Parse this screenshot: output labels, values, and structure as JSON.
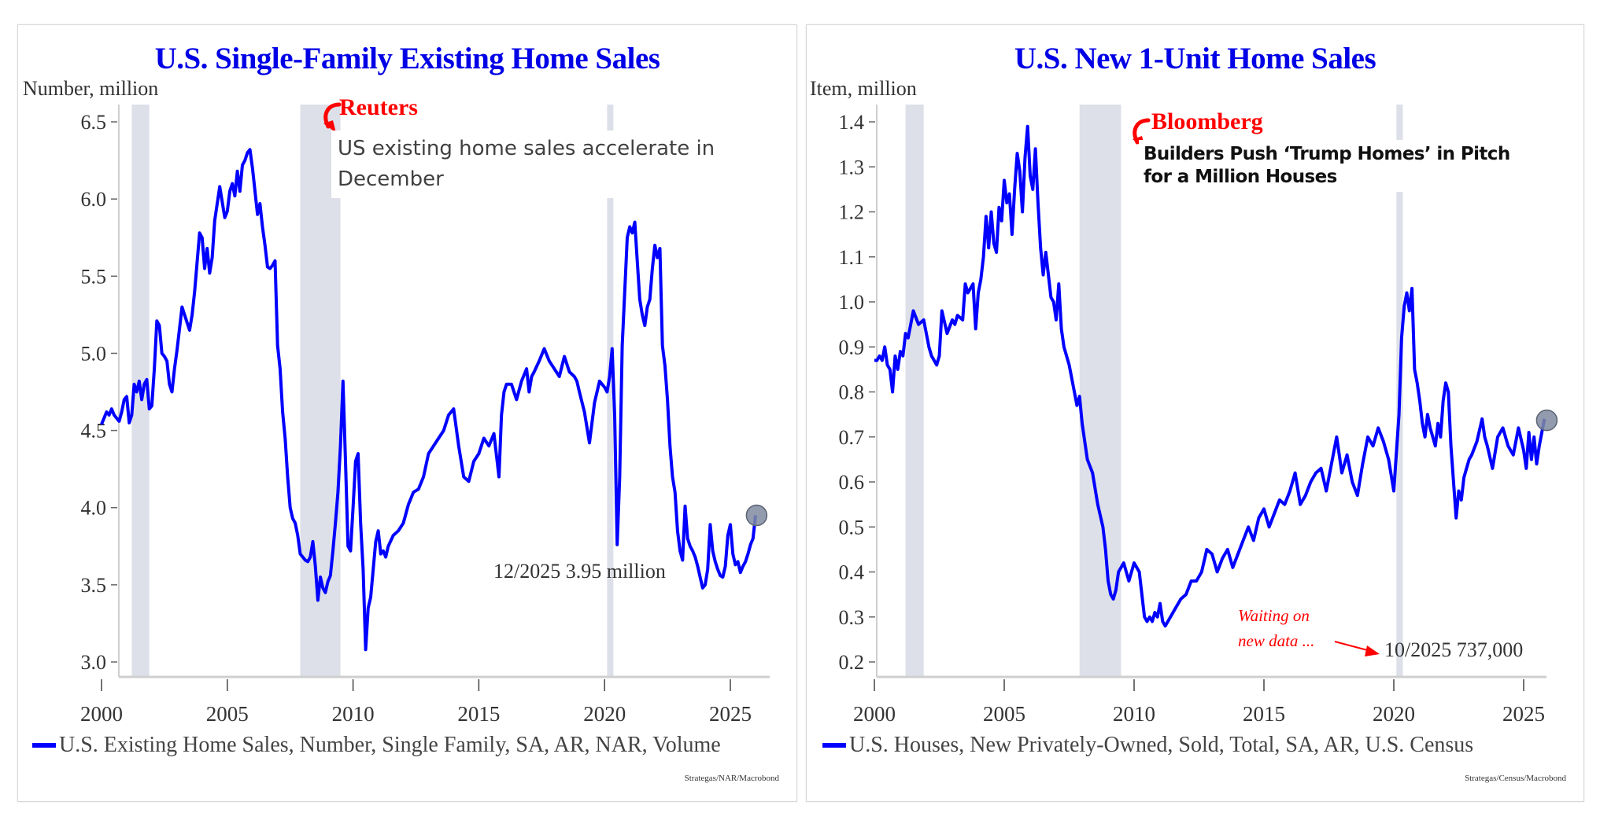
{
  "colors": {
    "title": "#0000e6",
    "series": "#0000ff",
    "recession": "#dde0e8",
    "annotation_red": "#ff0000",
    "endpoint_marker": "#7f8ba0"
  },
  "chart_data": [
    {
      "type": "line",
      "title": "U.S. Single-Family Existing Home Sales",
      "ylabel": "Number, million",
      "xlabel": "",
      "xlim": [
        2000,
        2026.3
      ],
      "ylim": [
        2.93,
        6.6
      ],
      "x_ticks": [
        2000,
        2005,
        2010,
        2015,
        2020,
        2025
      ],
      "x_tick_labels": [
        "2000",
        "2005",
        "2010",
        "2015",
        "2020",
        "2025"
      ],
      "y_ticks": [
        3.0,
        3.5,
        4.0,
        4.5,
        5.0,
        5.5,
        6.0,
        6.5
      ],
      "y_tick_labels": [
        "3.0",
        "3.5",
        "4.0",
        "4.5",
        "5.0",
        "5.5",
        "6.0",
        "6.5"
      ],
      "grid": false,
      "legend": "bottom",
      "recessions": [
        [
          2001.2,
          2001.9
        ],
        [
          2007.9,
          2009.5
        ],
        [
          2020.1,
          2020.35
        ]
      ],
      "series": [
        {
          "name": "U.S. Existing Home Sales, Number, Single Family, SA, AR, NAR, Volume",
          "x": [
            2000.0,
            2000.1,
            2000.2,
            2000.3,
            2000.4,
            2000.5,
            2000.6,
            2000.7,
            2000.8,
            2000.9,
            2001.0,
            2001.1,
            2001.2,
            2001.3,
            2001.4,
            2001.5,
            2001.6,
            2001.7,
            2001.8,
            2001.9,
            2002.0,
            2002.1,
            2002.2,
            2002.3,
            2002.4,
            2002.5,
            2002.6,
            2002.7,
            2002.8,
            2002.9,
            2003.0,
            2003.2,
            2003.4,
            2003.5,
            2003.6,
            2003.7,
            2003.9,
            2004.0,
            2004.1,
            2004.2,
            2004.3,
            2004.4,
            2004.5,
            2004.7,
            2004.9,
            2005.0,
            2005.1,
            2005.2,
            2005.3,
            2005.4,
            2005.5,
            2005.6,
            2005.7,
            2005.8,
            2005.9,
            2006.0,
            2006.1,
            2006.2,
            2006.3,
            2006.4,
            2006.5,
            2006.6,
            2006.7,
            2006.8,
            2006.9,
            2007.0,
            2007.1,
            2007.2,
            2007.3,
            2007.4,
            2007.5,
            2007.6,
            2007.7,
            2007.8,
            2007.9,
            2008.0,
            2008.1,
            2008.2,
            2008.3,
            2008.4,
            2008.5,
            2008.6,
            2008.7,
            2008.8,
            2008.9,
            2009.0,
            2009.1,
            2009.2,
            2009.3,
            2009.4,
            2009.5,
            2009.6,
            2009.7,
            2009.8,
            2009.9,
            2010.0,
            2010.1,
            2010.2,
            2010.3,
            2010.4,
            2010.5,
            2010.6,
            2010.7,
            2010.8,
            2010.9,
            2011.0,
            2011.1,
            2011.2,
            2011.3,
            2011.4,
            2011.6,
            2011.8,
            2012.0,
            2012.2,
            2012.4,
            2012.6,
            2012.8,
            2013.0,
            2013.2,
            2013.4,
            2013.6,
            2013.8,
            2014.0,
            2014.2,
            2014.4,
            2014.6,
            2014.8,
            2015.0,
            2015.2,
            2015.4,
            2015.6,
            2015.8,
            2015.9,
            2016.0,
            2016.1,
            2016.3,
            2016.5,
            2016.7,
            2016.9,
            2017.0,
            2017.1,
            2017.2,
            2017.4,
            2017.6,
            2017.8,
            2018.0,
            2018.2,
            2018.4,
            2018.6,
            2018.8,
            2018.9,
            2019.0,
            2019.2,
            2019.4,
            2019.6,
            2019.8,
            2020.0,
            2020.1,
            2020.2,
            2020.3,
            2020.4,
            2020.5,
            2020.6,
            2020.7,
            2020.8,
            2020.9,
            2021.0,
            2021.1,
            2021.2,
            2021.3,
            2021.4,
            2021.5,
            2021.6,
            2021.7,
            2021.8,
            2021.9,
            2022.0,
            2022.1,
            2022.2,
            2022.3,
            2022.4,
            2022.5,
            2022.6,
            2022.7,
            2022.8,
            2022.9,
            2023.0,
            2023.1,
            2023.2,
            2023.3,
            2023.4,
            2023.5,
            2023.6,
            2023.7,
            2023.8,
            2023.9,
            2024.0,
            2024.1,
            2024.2,
            2024.3,
            2024.4,
            2024.5,
            2024.6,
            2024.7,
            2024.8,
            2024.9,
            2025.0,
            2025.1,
            2025.2,
            2025.3,
            2025.4,
            2025.5,
            2025.6,
            2025.7,
            2025.8,
            2025.9,
            2026.0
          ],
          "y": [
            4.54,
            4.58,
            4.62,
            4.6,
            4.64,
            4.6,
            4.58,
            4.56,
            4.62,
            4.7,
            4.72,
            4.55,
            4.6,
            4.8,
            4.75,
            4.82,
            4.7,
            4.8,
            4.83,
            4.64,
            4.66,
            4.9,
            5.21,
            5.18,
            5.0,
            4.98,
            4.95,
            4.8,
            4.75,
            4.9,
            5.02,
            5.3,
            5.2,
            5.15,
            5.25,
            5.4,
            5.78,
            5.75,
            5.55,
            5.68,
            5.52,
            5.62,
            5.86,
            6.08,
            5.88,
            5.92,
            6.05,
            6.1,
            6.02,
            6.18,
            6.05,
            6.22,
            6.25,
            6.3,
            6.32,
            6.2,
            6.05,
            5.9,
            5.97,
            5.82,
            5.7,
            5.56,
            5.55,
            5.57,
            5.6,
            5.05,
            4.9,
            4.62,
            4.45,
            4.2,
            4.0,
            3.93,
            3.9,
            3.82,
            3.7,
            3.68,
            3.66,
            3.65,
            3.68,
            3.78,
            3.62,
            3.4,
            3.55,
            3.48,
            3.45,
            3.52,
            3.56,
            3.72,
            3.9,
            4.1,
            4.4,
            4.82,
            4.3,
            3.75,
            3.72,
            4.0,
            4.3,
            4.35,
            3.9,
            3.6,
            3.08,
            3.35,
            3.42,
            3.6,
            3.78,
            3.85,
            3.7,
            3.72,
            3.68,
            3.75,
            3.82,
            3.85,
            3.9,
            4.02,
            4.1,
            4.12,
            4.2,
            4.35,
            4.4,
            4.45,
            4.5,
            4.6,
            4.64,
            4.4,
            4.2,
            4.17,
            4.3,
            4.35,
            4.45,
            4.4,
            4.48,
            4.2,
            4.6,
            4.75,
            4.8,
            4.8,
            4.7,
            4.82,
            4.9,
            4.75,
            4.85,
            4.88,
            4.95,
            5.03,
            4.95,
            4.9,
            4.85,
            4.98,
            4.88,
            4.85,
            4.82,
            4.75,
            4.62,
            4.42,
            4.68,
            4.82,
            4.78,
            4.75,
            4.85,
            5.03,
            4.6,
            3.76,
            4.2,
            5.05,
            5.4,
            5.75,
            5.82,
            5.78,
            5.85,
            5.6,
            5.35,
            5.25,
            5.18,
            5.3,
            5.35,
            5.55,
            5.7,
            5.62,
            5.68,
            5.05,
            4.92,
            4.7,
            4.4,
            4.2,
            4.1,
            3.85,
            3.72,
            3.66,
            4.01,
            3.8,
            3.75,
            3.72,
            3.68,
            3.62,
            3.55,
            3.48,
            3.5,
            3.6,
            3.89,
            3.72,
            3.65,
            3.6,
            3.56,
            3.55,
            3.62,
            3.82,
            3.89,
            3.7,
            3.63,
            3.65,
            3.58,
            3.62,
            3.65,
            3.7,
            3.76,
            3.8,
            3.95
          ]
        }
      ],
      "annotations": {
        "news_source": "Reuters",
        "headline_line1": "US existing home sales accelerate in",
        "headline_line2": "December",
        "endpoint_label": "12/2025 3.95 million",
        "endpoint": [
          2025.95,
          3.95
        ]
      },
      "source": "Strategas/NAR/Macrobond"
    },
    {
      "type": "line",
      "title": "U.S. New 1-Unit Home Sales",
      "ylabel": "Item, million",
      "xlabel": "",
      "xlim": [
        2000,
        2026.3
      ],
      "ylim": [
        0.17,
        1.435
      ],
      "x_ticks": [
        2000,
        2005,
        2010,
        2015,
        2020,
        2025
      ],
      "x_tick_labels": [
        "2000",
        "2005",
        "2010",
        "2015",
        "2020",
        "2025"
      ],
      "y_ticks": [
        0.2,
        0.3,
        0.4,
        0.5,
        0.6,
        0.7,
        0.8,
        0.9,
        1.0,
        1.1,
        1.2,
        1.3,
        1.4
      ],
      "y_tick_labels": [
        "0.2",
        "0.3",
        "0.4",
        "0.5",
        "0.6",
        "0.7",
        "0.8",
        "0.9",
        "1.0",
        "1.1",
        "1.2",
        "1.3",
        "1.4"
      ],
      "grid": false,
      "legend": "bottom",
      "recessions": [
        [
          2001.2,
          2001.9
        ],
        [
          2007.9,
          2009.5
        ],
        [
          2020.1,
          2020.35
        ]
      ],
      "series": [
        {
          "name": "U.S. Houses, New Privately-Owned, Sold, Total, SA, AR, U.S. Census",
          "x": [
            2000.0,
            2000.1,
            2000.2,
            2000.3,
            2000.4,
            2000.5,
            2000.6,
            2000.7,
            2000.8,
            2000.9,
            2001.0,
            2001.1,
            2001.2,
            2001.3,
            2001.5,
            2001.7,
            2001.9,
            2002.0,
            2002.1,
            2002.2,
            2002.3,
            2002.4,
            2002.5,
            2002.6,
            2002.8,
            2003.0,
            2003.1,
            2003.2,
            2003.4,
            2003.5,
            2003.6,
            2003.8,
            2003.9,
            2004.0,
            2004.1,
            2004.2,
            2004.3,
            2004.4,
            2004.5,
            2004.6,
            2004.7,
            2004.8,
            2004.9,
            2005.0,
            2005.1,
            2005.2,
            2005.3,
            2005.4,
            2005.5,
            2005.6,
            2005.7,
            2005.8,
            2005.9,
            2006.0,
            2006.1,
            2006.2,
            2006.3,
            2006.4,
            2006.5,
            2006.6,
            2006.7,
            2006.8,
            2006.9,
            2007.0,
            2007.1,
            2007.2,
            2007.3,
            2007.5,
            2007.6,
            2007.8,
            2007.9,
            2008.0,
            2008.2,
            2008.4,
            2008.6,
            2008.8,
            2008.9,
            2009.0,
            2009.1,
            2009.2,
            2009.3,
            2009.4,
            2009.6,
            2009.8,
            2010.0,
            2010.2,
            2010.4,
            2010.5,
            2010.6,
            2010.7,
            2010.8,
            2010.9,
            2011.0,
            2011.1,
            2011.2,
            2011.4,
            2011.6,
            2011.8,
            2012.0,
            2012.2,
            2012.4,
            2012.6,
            2012.8,
            2013.0,
            2013.2,
            2013.4,
            2013.6,
            2013.8,
            2014.0,
            2014.2,
            2014.4,
            2014.6,
            2014.8,
            2015.0,
            2015.2,
            2015.4,
            2015.6,
            2015.8,
            2016.0,
            2016.2,
            2016.4,
            2016.6,
            2016.8,
            2017.0,
            2017.2,
            2017.4,
            2017.6,
            2017.8,
            2018.0,
            2018.2,
            2018.4,
            2018.6,
            2018.8,
            2019.0,
            2019.2,
            2019.4,
            2019.6,
            2019.8,
            2020.0,
            2020.2,
            2020.3,
            2020.4,
            2020.5,
            2020.6,
            2020.7,
            2020.8,
            2020.9,
            2021.0,
            2021.1,
            2021.2,
            2021.3,
            2021.4,
            2021.5,
            2021.6,
            2021.7,
            2021.8,
            2021.9,
            2022.0,
            2022.1,
            2022.2,
            2022.3,
            2022.4,
            2022.5,
            2022.6,
            2022.7,
            2022.8,
            2022.9,
            2023.0,
            2023.2,
            2023.4,
            2023.5,
            2023.6,
            2023.8,
            2024.0,
            2024.2,
            2024.4,
            2024.6,
            2024.8,
            2025.0,
            2025.1,
            2025.2,
            2025.3,
            2025.4,
            2025.5,
            2025.6,
            2025.8
          ],
          "y": [
            0.87,
            0.87,
            0.88,
            0.87,
            0.9,
            0.86,
            0.85,
            0.8,
            0.88,
            0.85,
            0.89,
            0.88,
            0.93,
            0.92,
            0.98,
            0.95,
            0.96,
            0.93,
            0.9,
            0.88,
            0.87,
            0.86,
            0.88,
            0.98,
            0.93,
            0.96,
            0.95,
            0.97,
            0.96,
            1.04,
            1.02,
            1.04,
            0.94,
            1.02,
            1.05,
            1.1,
            1.19,
            1.12,
            1.2,
            1.13,
            1.11,
            1.21,
            1.18,
            1.27,
            1.22,
            1.24,
            1.15,
            1.25,
            1.33,
            1.29,
            1.2,
            1.32,
            1.39,
            1.28,
            1.25,
            1.34,
            1.22,
            1.12,
            1.06,
            1.11,
            1.06,
            1.01,
            1.0,
            0.96,
            1.04,
            0.94,
            0.9,
            0.86,
            0.83,
            0.77,
            0.79,
            0.73,
            0.65,
            0.62,
            0.55,
            0.5,
            0.45,
            0.38,
            0.35,
            0.34,
            0.36,
            0.4,
            0.42,
            0.38,
            0.42,
            0.4,
            0.3,
            0.29,
            0.3,
            0.29,
            0.31,
            0.3,
            0.33,
            0.29,
            0.28,
            0.3,
            0.32,
            0.34,
            0.35,
            0.38,
            0.38,
            0.4,
            0.45,
            0.44,
            0.4,
            0.43,
            0.45,
            0.41,
            0.44,
            0.47,
            0.5,
            0.47,
            0.52,
            0.54,
            0.5,
            0.53,
            0.56,
            0.55,
            0.58,
            0.62,
            0.55,
            0.57,
            0.6,
            0.62,
            0.63,
            0.58,
            0.64,
            0.7,
            0.62,
            0.66,
            0.6,
            0.57,
            0.64,
            0.7,
            0.68,
            0.72,
            0.69,
            0.65,
            0.58,
            0.75,
            0.92,
            0.99,
            1.02,
            0.98,
            1.03,
            0.85,
            0.82,
            0.78,
            0.73,
            0.7,
            0.75,
            0.72,
            0.7,
            0.68,
            0.73,
            0.7,
            0.78,
            0.82,
            0.8,
            0.68,
            0.6,
            0.52,
            0.58,
            0.56,
            0.61,
            0.63,
            0.65,
            0.66,
            0.69,
            0.74,
            0.7,
            0.68,
            0.63,
            0.7,
            0.72,
            0.68,
            0.66,
            0.72,
            0.67,
            0.63,
            0.71,
            0.65,
            0.7,
            0.64,
            0.68,
            0.74
          ],
          "endpoint_note": "Waiting on new data ..."
        }
      ],
      "annotations": {
        "news_source": "Bloomberg",
        "headline_line1": "Builders Push ‘Trump Homes’ in Pitch",
        "headline_line2": "for a Million Houses",
        "waiting_line1": "Waiting on",
        "waiting_line2": "new data ...",
        "endpoint_label": "10/2025 737,000",
        "endpoint": [
          2025.8,
          0.737
        ]
      },
      "source": "Strategas/Census/Macrobond"
    }
  ]
}
